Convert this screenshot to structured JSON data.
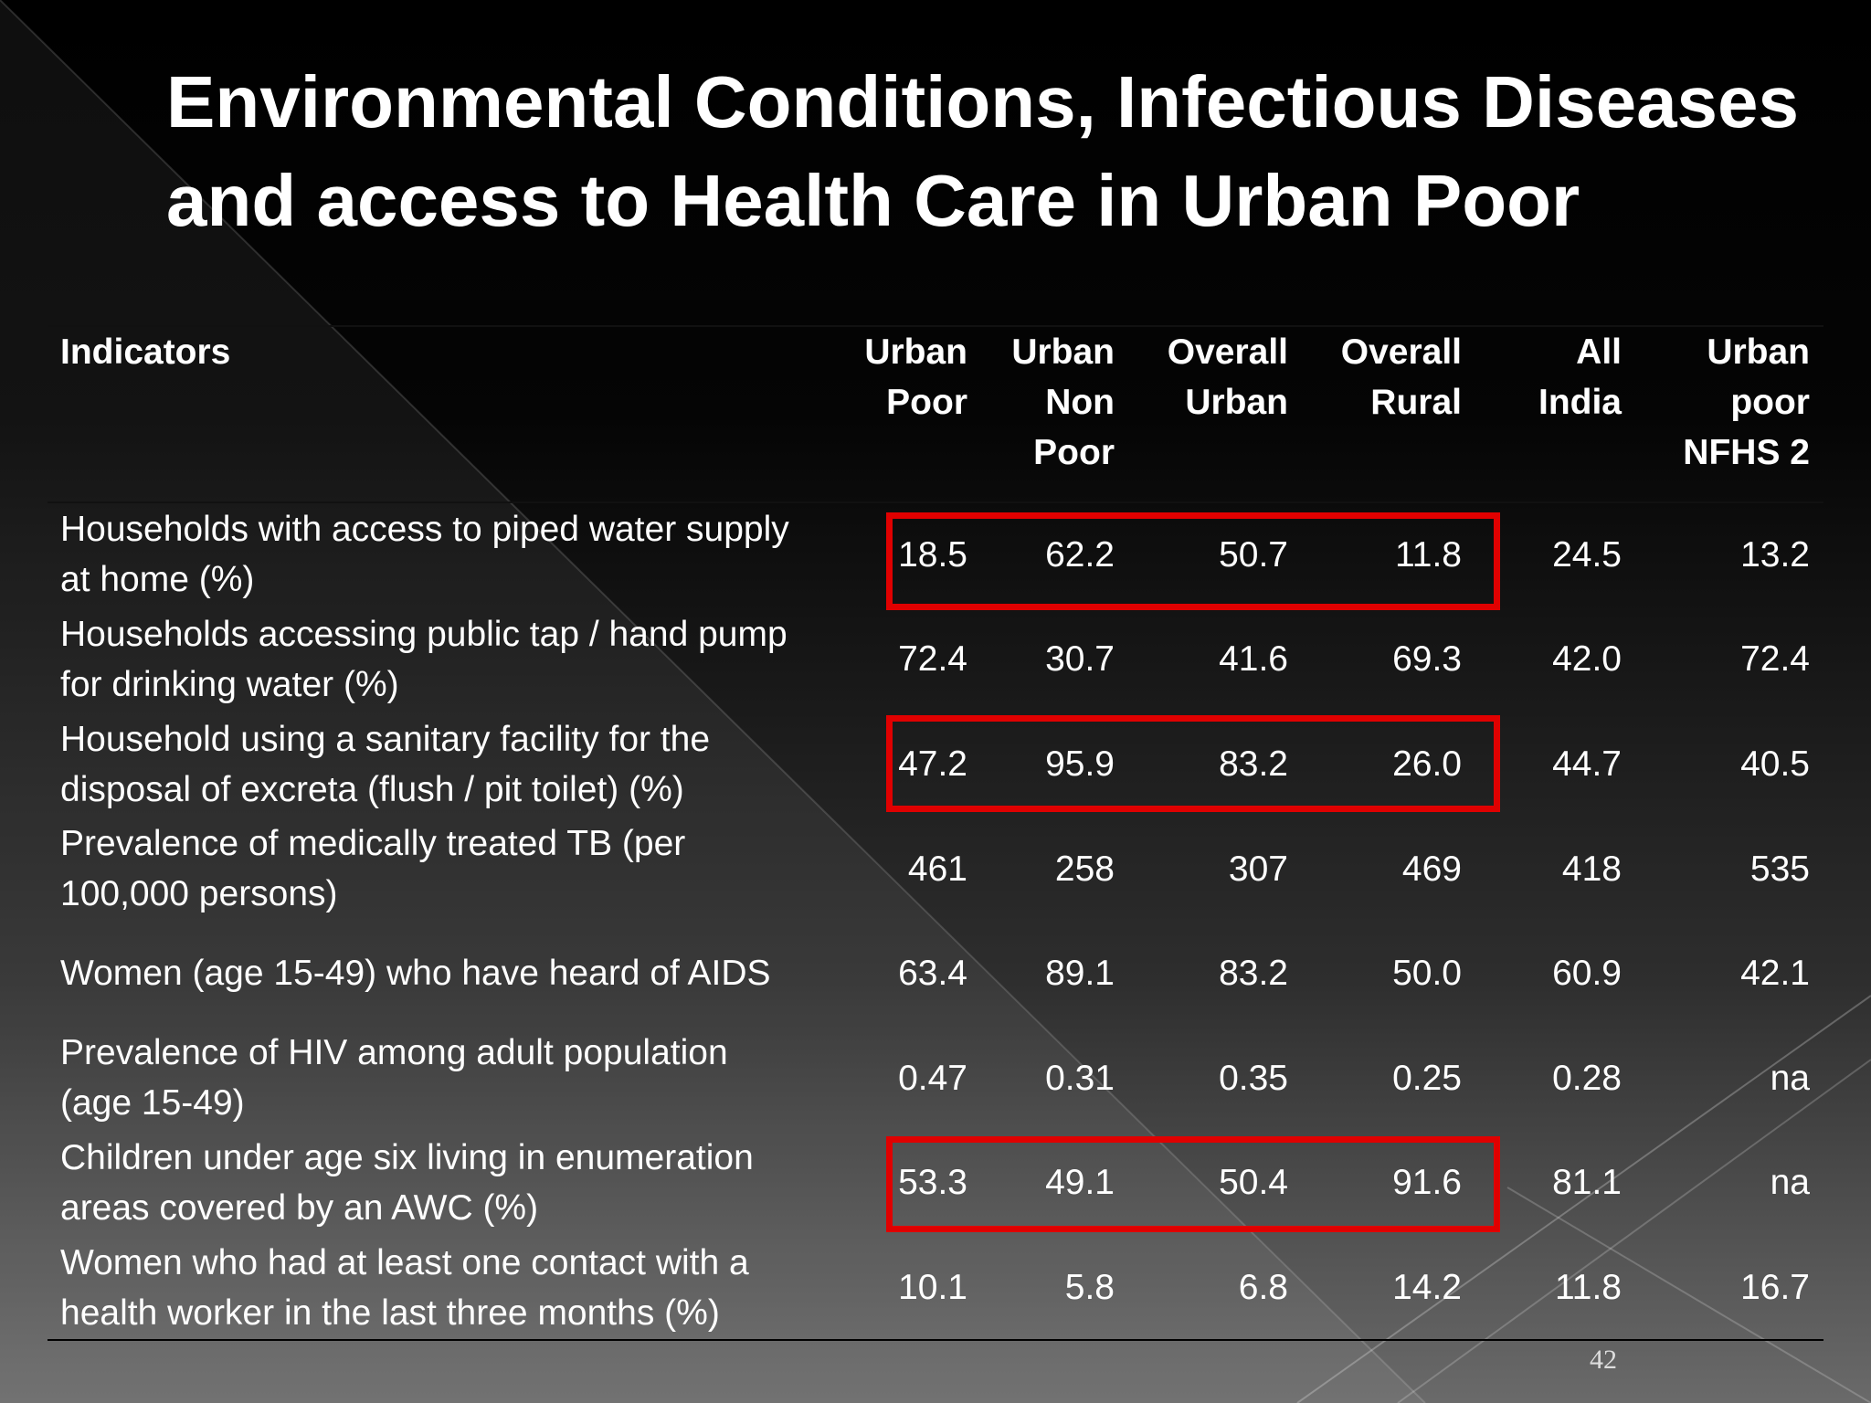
{
  "slide": {
    "title": [
      "Environmental Conditions, Infectious Diseases",
      "and access to Health Care in Urban Poor"
    ],
    "table": {
      "headers": [
        [
          "Indicators"
        ],
        [
          "Urban",
          "Poor"
        ],
        [
          "Urban",
          "Non",
          "Poor"
        ],
        [
          "Overall",
          "Urban"
        ],
        [
          "Overall",
          "Rural"
        ],
        [
          "All",
          "India"
        ],
        [
          "Urban",
          "poor",
          "NFHS 2"
        ]
      ],
      "rows": [
        [
          [
            "Households with access to piped water supply",
            "at home (%)"
          ],
          "18.5",
          "62.2",
          "50.7",
          "11.8",
          "24.5",
          "13.2"
        ],
        [
          [
            "Households accessing public tap / hand pump",
            "for drinking water (%)"
          ],
          "72.4",
          "30.7",
          "41.6",
          "69.3",
          "42.0",
          "72.4"
        ],
        [
          [
            "Household using a sanitary facility for the",
            "disposal of excreta (flush / pit toilet) (%)"
          ],
          "47.2",
          "95.9",
          "83.2",
          "26.0",
          "44.7",
          "40.5"
        ],
        [
          [
            "Prevalence of medically treated TB (per",
            "100,000 persons)"
          ],
          "461",
          "258",
          "307",
          "469",
          "418",
          "535"
        ],
        [
          [
            "Women (age 15-49) who have heard of AIDS"
          ],
          "63.4",
          "89.1",
          "83.2",
          "50.0",
          "60.9",
          "42.1"
        ],
        [
          [
            "Prevalence of HIV among adult population",
            "(age 15-49)"
          ],
          "0.47",
          "0.31",
          "0.35",
          "0.25",
          "0.28",
          "na"
        ],
        [
          [
            "Children under age six living in enumeration",
            "areas covered by an AWC (%)"
          ],
          "53.3",
          "49.1",
          "50.4",
          "91.6",
          "81.1",
          "na"
        ],
        [
          [
            "Women who had at least one contact with a",
            "health worker in the last three months (%)"
          ],
          "10.1",
          "5.8",
          "6.8",
          "14.2",
          "11.8",
          "16.7"
        ]
      ]
    },
    "page_number": "42"
  }
}
